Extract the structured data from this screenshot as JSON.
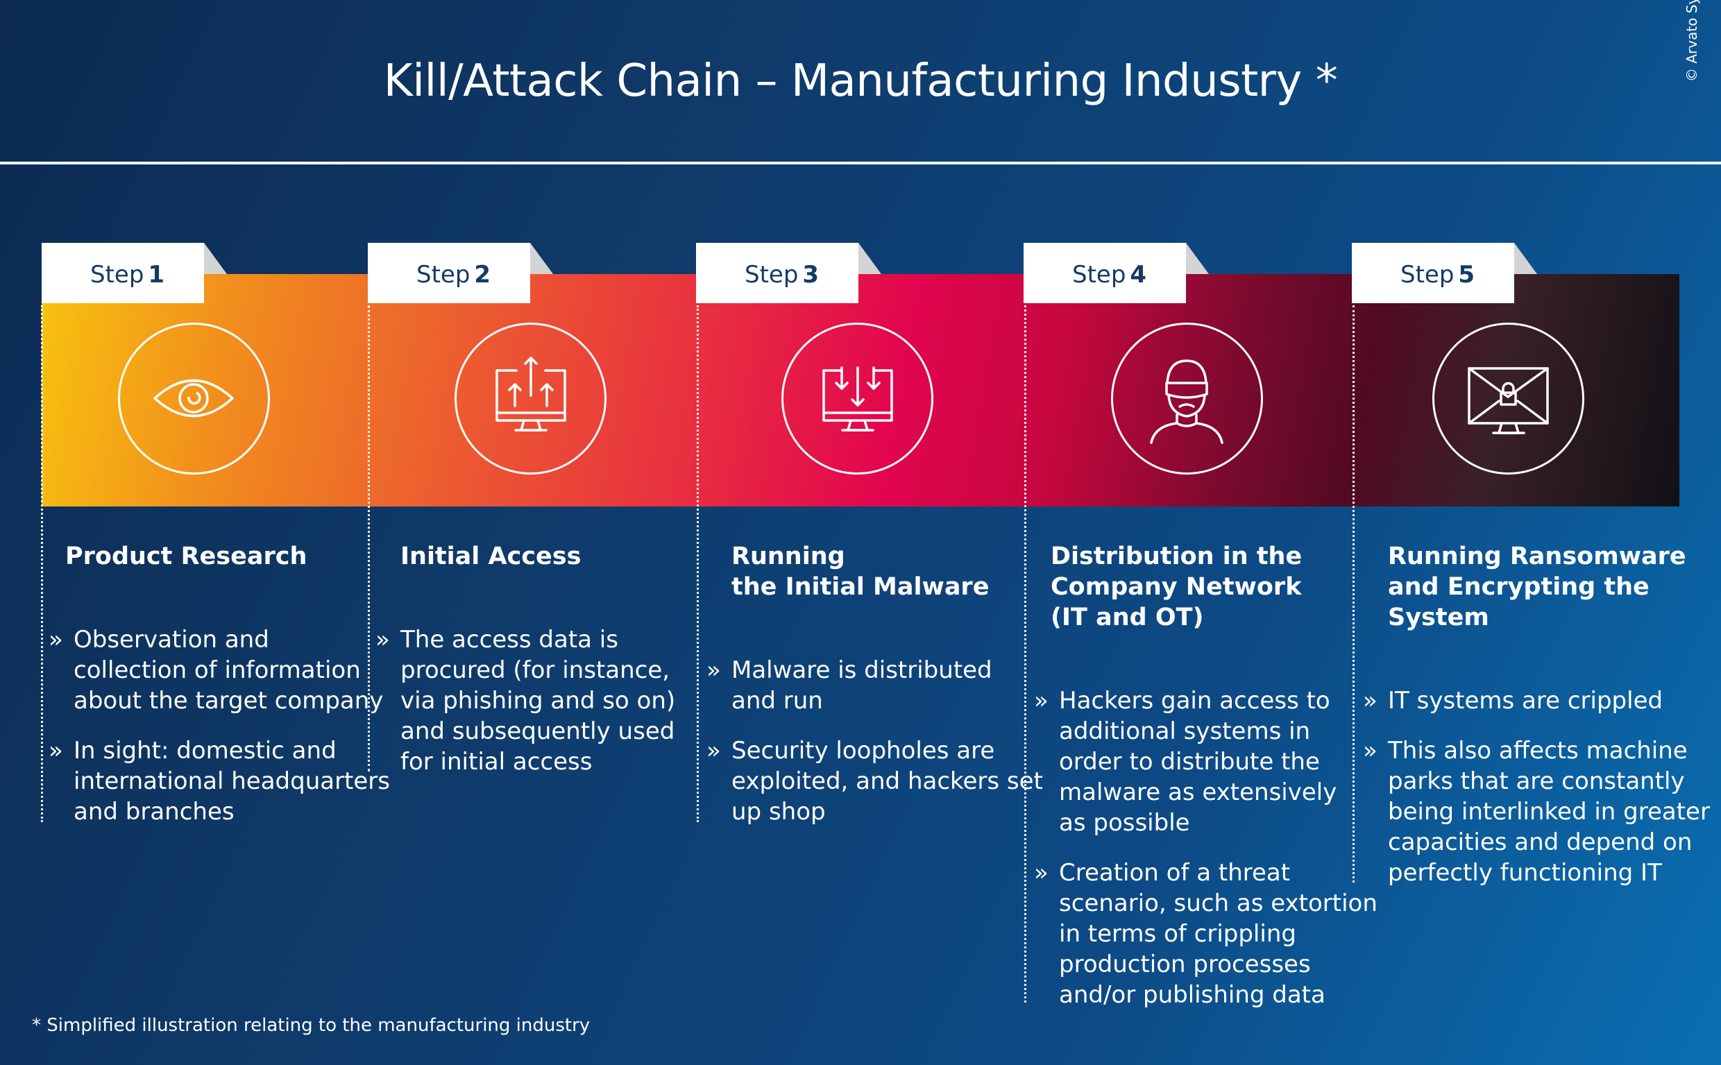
{
  "title": "Kill/Attack Chain – Manufacturing Industry *",
  "copyright": "© Arvato Systems",
  "steps": [
    {
      "label": "Step",
      "number": "1",
      "icon": "eye-icon",
      "title_lines": [
        "Product Research"
      ],
      "bullets": [
        [
          "Observation and",
          "collection of information",
          "about the target company"
        ],
        [
          "In sight: domestic and",
          "international headquarters",
          "and branches"
        ]
      ]
    },
    {
      "label": "Step",
      "number": "2",
      "icon": "monitor-upload-icon",
      "title_lines": [
        "Initial Access"
      ],
      "bullets": [
        [
          "The access data is",
          "procured (for instance,",
          "via phishing and so on)",
          "and subsequently used",
          "for initial access"
        ]
      ]
    },
    {
      "label": "Step",
      "number": "3",
      "icon": "monitor-download-icon",
      "title_lines": [
        "Running",
        "the Initial Malware"
      ],
      "bullets": [
        [
          "Malware is distributed",
          "and run"
        ],
        [
          "Security loopholes are",
          "exploited, and hackers set",
          "up shop"
        ]
      ]
    },
    {
      "label": "Step",
      "number": "4",
      "icon": "hacker-icon",
      "title_lines": [
        "Distribution in the",
        "Company Network",
        "(IT and OT)"
      ],
      "bullets": [
        [
          "Hackers gain access to",
          "additional systems in",
          "order to distribute the",
          "malware as extensively",
          "as possible"
        ],
        [
          "Creation of a threat",
          "scenario, such as extortion",
          "in terms of crippling",
          "production processes",
          "and/or publishing data"
        ]
      ]
    },
    {
      "label": "Step",
      "number": "5",
      "icon": "monitor-lock-icon",
      "title_lines": [
        "Running Ransomware",
        "and Encrypting the",
        "System"
      ],
      "bullets": [
        [
          "IT systems are crippled"
        ],
        [
          "This also affects machine",
          "parks that are constantly",
          "being interlinked in greater",
          "capacities and depend on",
          "perfectly functioning IT"
        ]
      ]
    }
  ],
  "footnote": "* Simplified illustration relating to the manufacturing industry"
}
